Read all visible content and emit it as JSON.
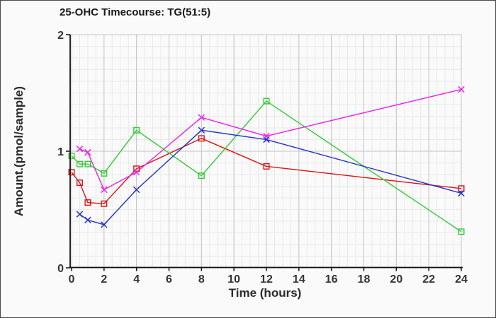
{
  "chart_data": {
    "type": "line",
    "title": "25-OHC Timecourse: TG(51:5)",
    "xlabel": "Time (hours)",
    "ylabel": "Amount.(pmol/sample)",
    "xlim": [
      0,
      24
    ],
    "ylim": [
      0,
      2
    ],
    "x_ticks": [
      0,
      2,
      4,
      6,
      8,
      10,
      12,
      14,
      16,
      18,
      20,
      22,
      24
    ],
    "y_ticks": [
      0,
      1,
      2
    ],
    "grid": {
      "minor_x_step": 0.5,
      "minor_y_step": 0.1,
      "minor_color": "#eaeaea",
      "major_color": "#c4c4c4",
      "legend": "none"
    },
    "axis_color": "#111111",
    "series": [
      {
        "name": "red-squares",
        "color": "#dd1111",
        "marker": "square",
        "x": [
          0,
          0.5,
          1,
          2,
          4,
          8,
          12,
          24
        ],
        "y": [
          0.82,
          0.73,
          0.56,
          0.55,
          0.85,
          1.11,
          0.87,
          0.68
        ]
      },
      {
        "name": "green-squares",
        "color": "#33cc33",
        "marker": "square",
        "x": [
          0,
          0.5,
          1,
          2,
          4,
          8,
          12,
          24
        ],
        "y": [
          0.96,
          0.89,
          0.89,
          0.81,
          1.18,
          0.79,
          1.43,
          0.31
        ]
      },
      {
        "name": "blue-x",
        "color": "#2233cc",
        "marker": "x",
        "x": [
          0.5,
          1,
          2,
          4,
          8,
          12,
          24
        ],
        "y": [
          0.46,
          0.41,
          0.37,
          0.67,
          1.18,
          1.1,
          0.64
        ]
      },
      {
        "name": "magenta-x",
        "color": "#ee22ee",
        "marker": "x",
        "x": [
          0.5,
          1,
          2,
          4,
          8,
          12,
          24
        ],
        "y": [
          1.02,
          0.99,
          0.67,
          0.82,
          1.29,
          1.13,
          1.53
        ]
      }
    ]
  }
}
